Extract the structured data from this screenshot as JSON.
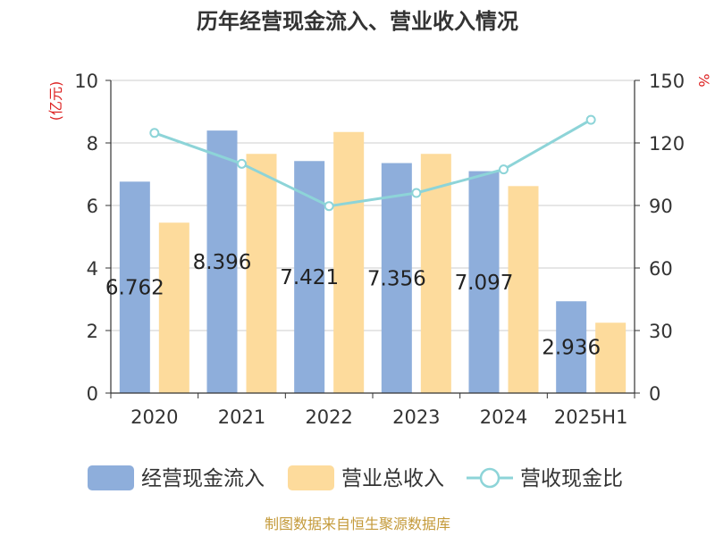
{
  "chart_data": {
    "type": "bar",
    "title": "历年经营现金流入、营业收入情况",
    "categories": [
      "2020",
      "2021",
      "2022",
      "2023",
      "2024",
      "2025H1"
    ],
    "series": [
      {
        "name": "经营现金流入",
        "type": "bar",
        "axis": "left",
        "color": "#8eaedb",
        "values": [
          6.762,
          8.396,
          7.421,
          7.356,
          7.097,
          2.936
        ],
        "labels": [
          "6.762",
          "8.396",
          "7.421",
          "7.356",
          "7.097",
          "2.936"
        ]
      },
      {
        "name": "营业总收入",
        "type": "bar",
        "axis": "left",
        "color": "#fddb9c",
        "values": [
          5.45,
          7.65,
          8.35,
          7.65,
          6.62,
          2.25
        ]
      },
      {
        "name": "营收现金比",
        "type": "line",
        "axis": "right",
        "color": "#8dd4d8",
        "values": [
          124.8,
          110.0,
          89.7,
          96.0,
          107.3,
          131.1
        ]
      }
    ],
    "ylabel": "(亿元)",
    "y2label": "%",
    "ylim": [
      0,
      10
    ],
    "y2lim": [
      0,
      150
    ],
    "yticks": [
      "0",
      "2",
      "4",
      "6",
      "8",
      "10"
    ],
    "y2ticks": [
      "0",
      "30",
      "60",
      "90",
      "120",
      "150"
    ],
    "grid": true,
    "legend_position": "bottom",
    "source": "制图数据来自恒生聚源数据库"
  }
}
